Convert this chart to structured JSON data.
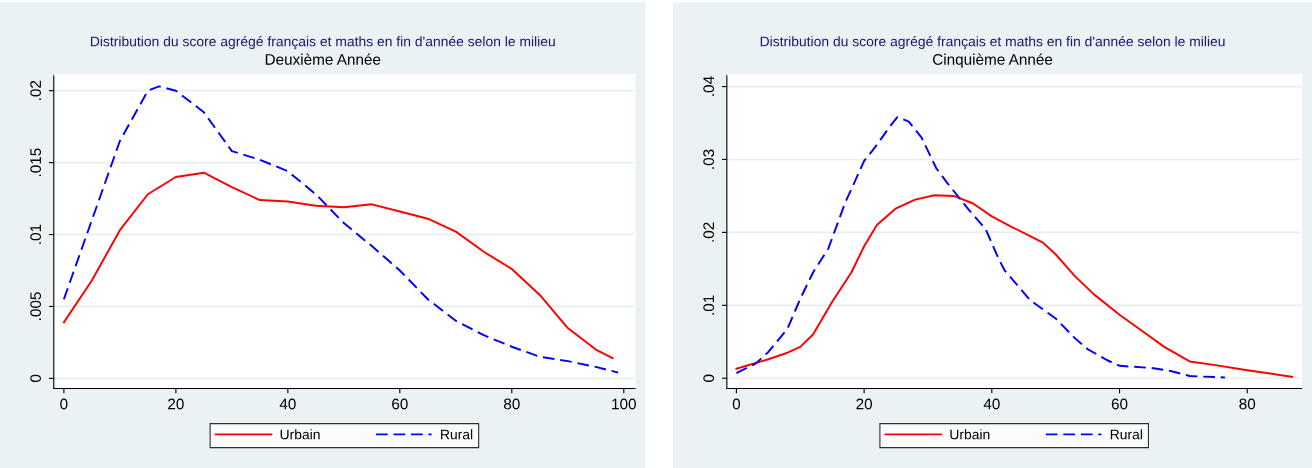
{
  "chart_data": [
    {
      "type": "line",
      "title": "Distribution du score agrégé français et maths en fin d'année selon le milieu",
      "subtitle": "Deuxième Année",
      "xlim": [
        -1.8,
        102
      ],
      "xticks": [
        0,
        20,
        40,
        60,
        80,
        100
      ],
      "ylim": [
        -0.0007,
        0.0211
      ],
      "yticks": [
        0,
        {
          "value": 0.005,
          "label": ".005"
        },
        {
          "value": 0.01,
          "label": ".01"
        },
        {
          "value": 0.015,
          "label": ".015"
        },
        {
          "value": 0.02,
          "label": ".02"
        }
      ],
      "grid": "y",
      "legend": "bottom",
      "series": [
        {
          "name": "Urbain",
          "color": "#ff0000",
          "line_style": "solid",
          "x": [
            0,
            5,
            10,
            15,
            20,
            25,
            30,
            35,
            40,
            45,
            50,
            55,
            60,
            65,
            70,
            75,
            80,
            85,
            90,
            95,
            98
          ],
          "values": [
            0.0039,
            0.0068,
            0.0103,
            0.0128,
            0.014,
            0.0143,
            0.0133,
            0.0124,
            0.0123,
            0.012,
            0.0119,
            0.0121,
            0.0116,
            0.0111,
            0.0102,
            0.0088,
            0.0076,
            0.0058,
            0.0035,
            0.002,
            0.0014
          ]
        },
        {
          "name": "Rural",
          "color": "#0000ff",
          "line_style": "dashed",
          "x": [
            0,
            5,
            10,
            15,
            17,
            20,
            25,
            30,
            35,
            40,
            45,
            50,
            55,
            60,
            65,
            70,
            75,
            80,
            85,
            90,
            95,
            99
          ],
          "values": [
            0.0055,
            0.011,
            0.0165,
            0.02,
            0.0203,
            0.02,
            0.0185,
            0.0158,
            0.0152,
            0.0144,
            0.0128,
            0.0108,
            0.0092,
            0.0075,
            0.0055,
            0.004,
            0.003,
            0.0022,
            0.0015,
            0.0012,
            0.0008,
            0.0004
          ]
        }
      ]
    },
    {
      "type": "line",
      "title": "Distribution du score agrégé français et maths en fin d'année selon le milieu",
      "subtitle": "Cinquième Année",
      "xlim": [
        -1.5,
        88.5
      ],
      "xticks": [
        0,
        20,
        40,
        60,
        80
      ],
      "ylim": [
        -0.0014,
        0.0416
      ],
      "yticks": [
        0,
        {
          "value": 0.01,
          "label": ".01"
        },
        {
          "value": 0.02,
          "label": ".02"
        },
        {
          "value": 0.03,
          "label": ".03"
        },
        {
          "value": 0.04,
          "label": ".04"
        }
      ],
      "grid": "y",
      "legend": "bottom",
      "series": [
        {
          "name": "Urbain",
          "color": "#ff0000",
          "line_style": "solid",
          "x": [
            0,
            5,
            8,
            10,
            12,
            15,
            18,
            20,
            22,
            25,
            28,
            31,
            34,
            37,
            40,
            43,
            46,
            48,
            50,
            53,
            56,
            60,
            64,
            67,
            71,
            75,
            80,
            87
          ],
          "values": [
            0.0013,
            0.0026,
            0.0035,
            0.0043,
            0.006,
            0.0105,
            0.0145,
            0.0181,
            0.021,
            0.0233,
            0.0245,
            0.0251,
            0.025,
            0.024,
            0.0222,
            0.0208,
            0.0195,
            0.0186,
            0.017,
            0.014,
            0.0115,
            0.0087,
            0.0062,
            0.0043,
            0.0023,
            0.0018,
            0.0011,
            0.0002
          ]
        },
        {
          "name": "Rural",
          "color": "#0000ff",
          "line_style": "dashed",
          "x": [
            0,
            3,
            5,
            8,
            10,
            12,
            14.4,
            17,
            20,
            22,
            24,
            25.2,
            27,
            29,
            31.3,
            33,
            36.4,
            39,
            41,
            42,
            46,
            50,
            53,
            55,
            58,
            60,
            65,
            68,
            71,
            76.5
          ],
          "values": [
            0.0007,
            0.002,
            0.0036,
            0.0068,
            0.0109,
            0.0145,
            0.0178,
            0.024,
            0.0298,
            0.032,
            0.0345,
            0.0358,
            0.0352,
            0.033,
            0.0288,
            0.0268,
            0.0231,
            0.0205,
            0.0165,
            0.0148,
            0.0107,
            0.0082,
            0.0055,
            0.004,
            0.0025,
            0.0017,
            0.0014,
            0.001,
            0.0003,
            0.0001
          ]
        }
      ]
    }
  ]
}
